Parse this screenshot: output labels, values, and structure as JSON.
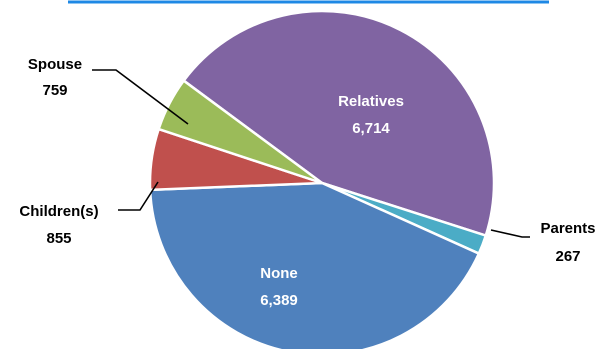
{
  "chart_data": {
    "type": "pie",
    "title": "",
    "categories": [
      "Relatives",
      "Parents",
      "None",
      "Children(s)",
      "Spouse"
    ],
    "values": [
      6714,
      267,
      6389,
      855,
      759
    ],
    "value_labels": [
      "6,714",
      "267",
      "6,389",
      "855",
      "759"
    ],
    "colors": [
      "#8064A2",
      "#4BACC6",
      "#4F81BD",
      "#C0504D",
      "#9BBB59"
    ],
    "start_angle_deg": 143.5,
    "legend": "none",
    "label_placement": [
      "inside",
      "outside-right",
      "inside",
      "outside-left",
      "outside-left"
    ]
  },
  "header_rule_color": "#1E88E5"
}
